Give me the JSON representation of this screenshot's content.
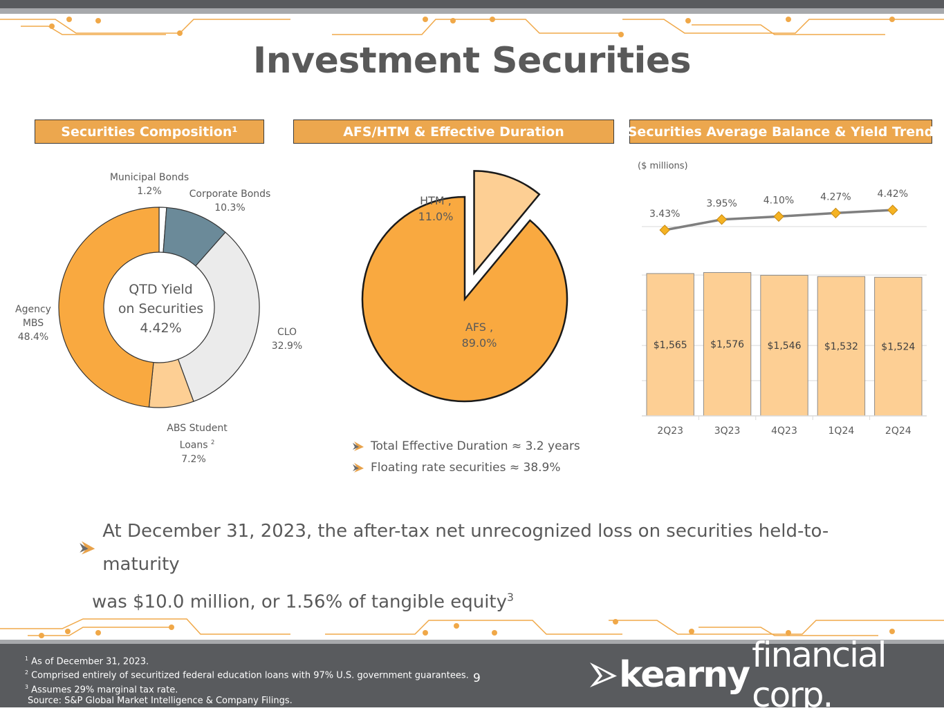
{
  "title": "Investment Securities",
  "panels": {
    "composition": "Securities Composition¹",
    "afs_htm": "AFS/HTM & Effective Duration",
    "trend": "Securities Average Balance & Yield Trend"
  },
  "donut_center": {
    "line1": "QTD Yield",
    "line2": "on Securities",
    "line3": "4.42%"
  },
  "composition_labels": {
    "municipal_name": "Municipal Bonds",
    "municipal_pct": "1.2%",
    "corporate_name": "Corporate Bonds",
    "corporate_pct": "10.3%",
    "clo_name": "CLO",
    "clo_pct": "32.9%",
    "abs_name1": "ABS Student",
    "abs_name2": "Loans",
    "abs_sup": "2",
    "abs_pct": "7.2%",
    "agency_name1": "Agency",
    "agency_name2": "MBS",
    "agency_pct": "48.4%"
  },
  "pie_labels": {
    "htm_name": "HTM ,",
    "htm_pct": "11.0%",
    "afs_name": "AFS ,",
    "afs_pct": "89.0%"
  },
  "bullets": [
    "Total Effective Duration ≈ 3.2 years",
    "Floating rate securities ≈ 38.9%"
  ],
  "trend_unit": "($ millions)",
  "big_text": {
    "line1": "At December 31, 2023, the after-tax net unrecognized loss on securities held-to-maturity",
    "line2": "was $10.0 million, or 1.56% of tangible equity",
    "sup": "3"
  },
  "footnotes": [
    {
      "sup": "1",
      "text": "As of December 31, 2023."
    },
    {
      "sup": "2",
      "text": "Comprised entirely of securitized federal education loans with 97% U.S. government guarantees."
    },
    {
      "sup": "3",
      "text": "Assumes 29% marginal tax rate."
    },
    {
      "sup": "",
      "text": "Source: S&P Global Market Intelligence & Company Filings."
    }
  ],
  "page_number": "9",
  "logo": {
    "bold": "kearny",
    "light": "financial corp."
  },
  "colors": {
    "orange": "#f9a940",
    "light_orange": "#fdcf94",
    "slate": "#6b8a99",
    "light_gray": "#ebebeb",
    "header": "#eca74e",
    "dark_gray": "#595b5e",
    "line_gray": "#7f7f7f",
    "diamond": "#f5b323"
  },
  "chart_data": [
    {
      "type": "pie",
      "subtype": "donut",
      "categories": [
        "Municipal Bonds",
        "Corporate Bonds",
        "CLO",
        "ABS Student Loans",
        "Agency MBS"
      ],
      "values": [
        1.2,
        10.3,
        32.9,
        7.2,
        48.4
      ],
      "colors": [
        "#ffffff",
        "#6b8a99",
        "#ebebeb",
        "#fdcf94",
        "#f9a940"
      ]
    },
    {
      "type": "pie",
      "categories": [
        "HTM",
        "AFS"
      ],
      "values": [
        11.0,
        89.0
      ],
      "colors": [
        "#fdcf94",
        "#f9a940"
      ],
      "exploded": "HTM"
    },
    {
      "type": "bar",
      "categories": [
        "2Q23",
        "3Q23",
        "4Q23",
        "1Q24",
        "2Q24"
      ],
      "series": [
        {
          "values": [
            1565,
            1576,
            1546,
            1532,
            1524
          ],
          "labels": [
            "$1,565",
            "$1,576",
            "$1,546",
            "$1,532",
            "$1,524"
          ]
        }
      ],
      "ylim": [
        0,
        1800
      ],
      "line": {
        "values": [
          3.43,
          3.95,
          4.1,
          4.27,
          4.42
        ],
        "labels": [
          "3.43%",
          "3.95%",
          "4.10%",
          "4.27%",
          "4.42%"
        ],
        "ylim": [
          2.0,
          4.6
        ]
      }
    }
  ]
}
